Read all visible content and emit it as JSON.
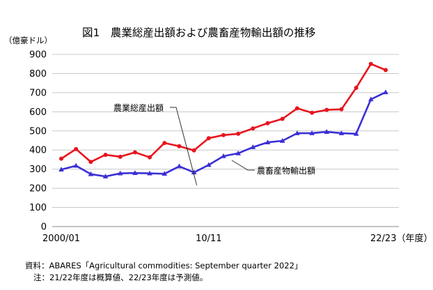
{
  "chart_data": {
    "type": "line",
    "title": "図1　農業総産出額および農畜産物輸出額の推移",
    "unit_label": "（億豪ドル）",
    "ylim": [
      0,
      900
    ],
    "yticks": [
      0,
      100,
      200,
      300,
      400,
      500,
      600,
      700,
      800,
      900
    ],
    "grid": true,
    "x": [
      "2000/01",
      "01/02",
      "02/03",
      "03/04",
      "04/05",
      "05/06",
      "06/07",
      "07/08",
      "08/09",
      "09/10",
      "10/11",
      "11/12",
      "12/13",
      "13/14",
      "14/15",
      "15/16",
      "16/17",
      "17/18",
      "18/19",
      "19/20",
      "20/21",
      "21/22",
      "22/23"
    ],
    "x_tick_labels": [
      {
        "index": 0,
        "label": "2000/01"
      },
      {
        "index": 10,
        "label": "10/11"
      },
      {
        "index": 22,
        "label": "22/23（年度）"
      }
    ],
    "series": [
      {
        "name": "農業総産出額",
        "color": "#e8141e",
        "marker": "circle",
        "values": [
          355,
          405,
          338,
          375,
          365,
          388,
          362,
          437,
          420,
          398,
          462,
          478,
          485,
          513,
          540,
          563,
          618,
          595,
          610,
          613,
          725,
          850,
          818
        ]
      },
      {
        "name": "農畜産物輸出額",
        "color": "#3b2fd6",
        "marker": "triangle",
        "values": [
          298,
          318,
          274,
          262,
          278,
          280,
          278,
          276,
          315,
          283,
          322,
          368,
          383,
          415,
          440,
          448,
          488,
          488,
          495,
          488,
          485,
          665,
          702
        ]
      }
    ]
  },
  "notes": {
    "source": "資料：ABARES「Agricultural commodities: September quarter 2022」",
    "note": "注：21/22年度は概算値、22/23年度は予測値。"
  }
}
